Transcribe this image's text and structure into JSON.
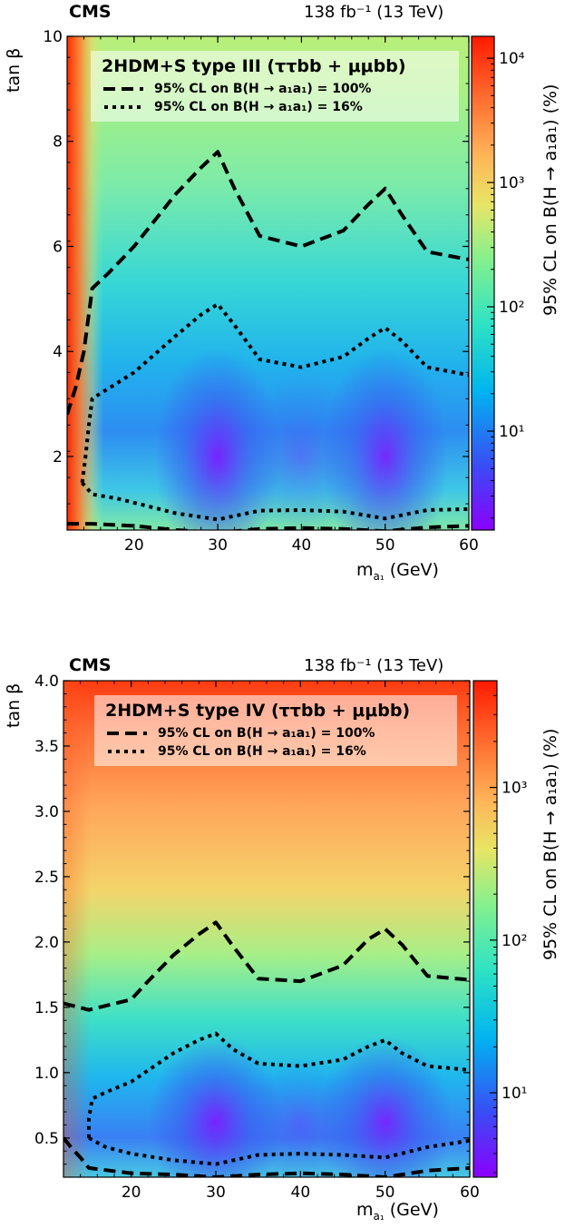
{
  "chart_data": [
    {
      "type": "heatmap",
      "experiment": "CMS",
      "lumi_text": "138 fb⁻¹ (13 TeV)",
      "title": "2HDM+S type III (ττbb + μμbb)",
      "xlabel": "m_a₁ (GeV)",
      "xlabel_main": "m",
      "xlabel_sub": "a₁",
      "xlabel_unit": " (GeV)",
      "ylabel": "tan β",
      "zlabel": "95% CL on B(H → a₁a₁) (%)",
      "xlim": [
        12,
        60
      ],
      "ylim": [
        0.6,
        10
      ],
      "z_scale": "log",
      "zlim": [
        1.6,
        15000
      ],
      "x_ticks": [
        "20",
        "30",
        "40",
        "50",
        "60"
      ],
      "y_ticks": [
        "2",
        "4",
        "6",
        "8",
        "10"
      ],
      "z_ticks": [
        "10¹",
        "10²",
        "10³",
        "10⁴"
      ],
      "legend": [
        {
          "label": "95% CL on B(H → a₁a₁)  =  100%",
          "style": "dashed"
        },
        {
          "label": "95% CL on B(H → a₁a₁)  =  16%",
          "style": "dotted"
        }
      ],
      "contours": [
        {
          "name": "100%",
          "style": "dashed",
          "segments": [
            [
              [
                12,
                2.8
              ],
              [
                13,
                3.3
              ],
              [
                14,
                4.0
              ],
              [
                15,
                5.2
              ],
              [
                17,
                5.5
              ],
              [
                20,
                6.0
              ],
              [
                23,
                6.6
              ],
              [
                25,
                7.0
              ],
              [
                28,
                7.5
              ],
              [
                30,
                7.8
              ],
              [
                32,
                7.1
              ],
              [
                35,
                6.2
              ],
              [
                40,
                6.0
              ],
              [
                45,
                6.3
              ],
              [
                48,
                6.8
              ],
              [
                50,
                7.1
              ],
              [
                52,
                6.6
              ],
              [
                55,
                5.9
              ],
              [
                60,
                5.75
              ]
            ],
            [
              [
                12,
                0.72
              ],
              [
                15,
                0.72
              ],
              [
                20,
                0.68
              ],
              [
                25,
                0.6
              ],
              [
                30,
                0.55
              ],
              [
                35,
                0.62
              ],
              [
                40,
                0.64
              ],
              [
                45,
                0.62
              ],
              [
                50,
                0.58
              ],
              [
                55,
                0.65
              ],
              [
                60,
                0.68
              ]
            ]
          ]
        },
        {
          "name": "16%",
          "style": "dotted",
          "segments": [
            [
              [
                13.8,
                1.5
              ],
              [
                14.2,
                2.0
              ],
              [
                14.6,
                2.6
              ],
              [
                15,
                3.1
              ],
              [
                17,
                3.3
              ],
              [
                20,
                3.6
              ],
              [
                25,
                4.3
              ],
              [
                28,
                4.7
              ],
              [
                30,
                4.9
              ],
              [
                32,
                4.5
              ],
              [
                35,
                3.85
              ],
              [
                40,
                3.7
              ],
              [
                45,
                3.9
              ],
              [
                48,
                4.25
              ],
              [
                50,
                4.45
              ],
              [
                52,
                4.2
              ],
              [
                55,
                3.7
              ],
              [
                60,
                3.55
              ]
            ],
            [
              [
                13.8,
                1.5
              ],
              [
                15,
                1.28
              ],
              [
                18,
                1.2
              ],
              [
                20,
                1.12
              ],
              [
                25,
                0.92
              ],
              [
                30,
                0.8
              ],
              [
                35,
                0.97
              ],
              [
                40,
                0.98
              ],
              [
                45,
                0.95
              ],
              [
                50,
                0.82
              ],
              [
                55,
                0.98
              ],
              [
                60,
                1.0
              ]
            ]
          ]
        }
      ]
    },
    {
      "type": "heatmap",
      "experiment": "CMS",
      "lumi_text": "138 fb⁻¹ (13 TeV)",
      "title": "2HDM+S type IV (ττbb + μμbb)",
      "xlabel": "m_a₁ (GeV)",
      "xlabel_main": "m",
      "xlabel_sub": "a₁",
      "xlabel_unit": " (GeV)",
      "ylabel": "tan β",
      "zlabel": "95% CL on B(H → a₁a₁) (%)",
      "xlim": [
        12,
        60
      ],
      "ylim": [
        0.2,
        4.0
      ],
      "z_scale": "log",
      "zlim": [
        2.8,
        5000
      ],
      "x_ticks": [
        "20",
        "30",
        "40",
        "50",
        "60"
      ],
      "y_ticks": [
        "0.5",
        "1.0",
        "1.5",
        "2.0",
        "2.5",
        "3.0",
        "3.5",
        "4.0"
      ],
      "z_ticks": [
        "10¹",
        "10²",
        "10³"
      ],
      "legend": [
        {
          "label": "95% CL on B(H → a₁a₁)  =  100%",
          "style": "dashed"
        },
        {
          "label": "95% CL on B(H → a₁a₁)  =  16%",
          "style": "dotted"
        }
      ],
      "contours": [
        {
          "name": "100%",
          "style": "dashed",
          "segments": [
            [
              [
                12,
                1.53
              ],
              [
                15,
                1.48
              ],
              [
                20,
                1.56
              ],
              [
                22,
                1.7
              ],
              [
                25,
                1.9
              ],
              [
                28,
                2.06
              ],
              [
                30,
                2.15
              ],
              [
                32,
                1.97
              ],
              [
                35,
                1.72
              ],
              [
                40,
                1.7
              ],
              [
                45,
                1.82
              ],
              [
                48,
                2.02
              ],
              [
                50,
                2.1
              ],
              [
                52,
                1.98
              ],
              [
                55,
                1.74
              ],
              [
                60,
                1.71
              ]
            ],
            [
              [
                12,
                0.5
              ],
              [
                13,
                0.42
              ],
              [
                14,
                0.35
              ],
              [
                15,
                0.27
              ],
              [
                20,
                0.23
              ],
              [
                25,
                0.22
              ],
              [
                30,
                0.2
              ],
              [
                35,
                0.22
              ],
              [
                40,
                0.23
              ],
              [
                45,
                0.22
              ],
              [
                50,
                0.2
              ],
              [
                55,
                0.25
              ],
              [
                60,
                0.27
              ]
            ]
          ]
        },
        {
          "name": "16%",
          "style": "dotted",
          "segments": [
            [
              [
                15,
                0.5
              ],
              [
                15,
                0.65
              ],
              [
                15.4,
                0.8
              ],
              [
                17,
                0.85
              ],
              [
                20,
                0.93
              ],
              [
                25,
                1.15
              ],
              [
                28,
                1.25
              ],
              [
                30,
                1.3
              ],
              [
                32,
                1.18
              ],
              [
                35,
                1.07
              ],
              [
                40,
                1.05
              ],
              [
                45,
                1.1
              ],
              [
                48,
                1.2
              ],
              [
                50,
                1.25
              ],
              [
                52,
                1.15
              ],
              [
                55,
                1.05
              ],
              [
                60,
                1.02
              ]
            ],
            [
              [
                15,
                0.5
              ],
              [
                17,
                0.43
              ],
              [
                20,
                0.38
              ],
              [
                25,
                0.33
              ],
              [
                30,
                0.3
              ],
              [
                35,
                0.37
              ],
              [
                40,
                0.38
              ],
              [
                45,
                0.37
              ],
              [
                50,
                0.35
              ],
              [
                55,
                0.43
              ],
              [
                60,
                0.48
              ]
            ]
          ]
        }
      ]
    }
  ]
}
